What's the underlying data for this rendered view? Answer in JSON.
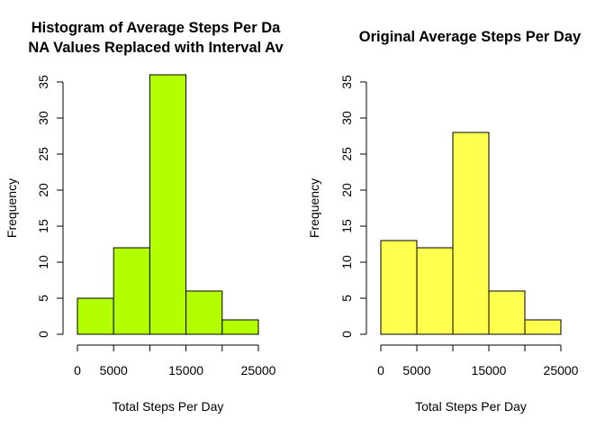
{
  "colors": {
    "left_fill": "#b3ff00",
    "right_fill": "#ffff4d",
    "stroke": "#000000"
  },
  "chart_data": [
    {
      "type": "bar",
      "title": "Histogram of Average Steps Per Da\nNA Values Replaced with Interval Av",
      "title_lines": [
        "Histogram of Average Steps Per Da",
        "NA Values Replaced with Interval Av"
      ],
      "xlabel": "Total Steps Per Day",
      "ylabel": "Frequency",
      "bin_edges": [
        0,
        5000,
        10000,
        15000,
        20000,
        25000
      ],
      "values": [
        5,
        12,
        36,
        6,
        2
      ],
      "xlim": [
        0,
        25000
      ],
      "ylim": [
        0,
        35
      ],
      "x_ticks": [
        0,
        5000,
        10000,
        15000,
        20000,
        25000
      ],
      "x_tick_labels": [
        "0",
        "5000",
        "",
        "15000",
        "",
        "25000"
      ],
      "y_ticks": [
        0,
        5,
        10,
        15,
        20,
        25,
        30,
        35
      ],
      "y_tick_labels": [
        "0",
        "5",
        "10",
        "15",
        "20",
        "25",
        "30",
        "35"
      ],
      "fill_color": "#b3ff00",
      "grid": false
    },
    {
      "type": "bar",
      "title": "Original Average Steps Per Day",
      "title_lines": [
        "Original Average Steps Per Day"
      ],
      "xlabel": "Total Steps Per Day",
      "ylabel": "Frequency",
      "bin_edges": [
        0,
        5000,
        10000,
        15000,
        20000,
        25000
      ],
      "values": [
        13,
        12,
        28,
        6,
        2
      ],
      "xlim": [
        0,
        25000
      ],
      "ylim": [
        0,
        35
      ],
      "x_ticks": [
        0,
        5000,
        10000,
        15000,
        20000,
        25000
      ],
      "x_tick_labels": [
        "0",
        "5000",
        "",
        "15000",
        "",
        "25000"
      ],
      "y_ticks": [
        0,
        5,
        10,
        15,
        20,
        25,
        30,
        35
      ],
      "y_tick_labels": [
        "0",
        "5",
        "10",
        "15",
        "20",
        "25",
        "30",
        "35"
      ],
      "fill_color": "#ffff4d",
      "grid": false
    }
  ]
}
